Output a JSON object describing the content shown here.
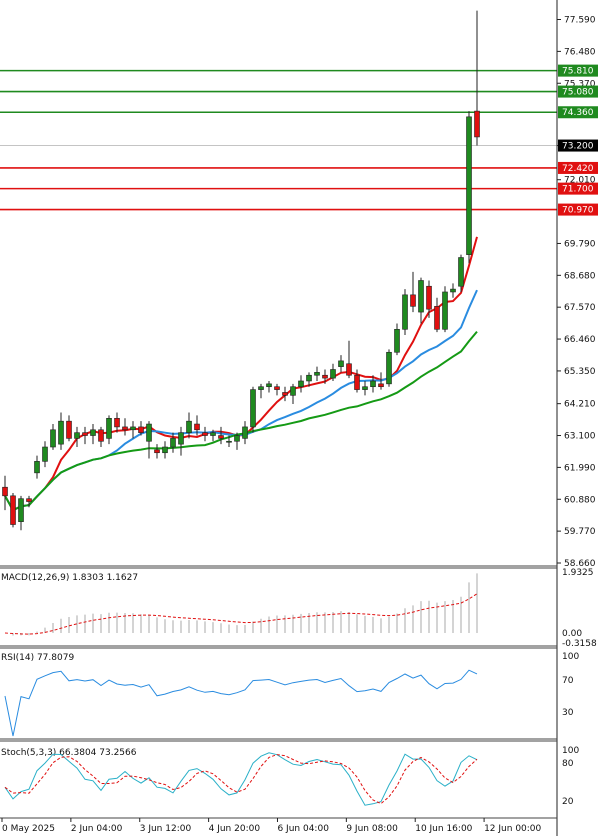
{
  "chart_data": {
    "type": "candlestick",
    "price_axis": {
      "ticks": [
        "77.590",
        "76.480",
        "75.370",
        "73.200",
        "72.010",
        "69.790",
        "68.680",
        "67.570",
        "66.460",
        "65.350",
        "64.210",
        "63.100",
        "61.990",
        "60.880",
        "59.770",
        "58.660"
      ],
      "range": [
        58.66,
        78.2
      ]
    },
    "current_price": {
      "value": 73.2,
      "label": "73.200",
      "color": "#000000"
    },
    "levels": [
      {
        "value": 75.81,
        "label": "75.810",
        "color": "#1f8a1f"
      },
      {
        "value": 75.08,
        "label": "75.080",
        "color": "#1f8a1f"
      },
      {
        "value": 74.36,
        "label": "74.360",
        "color": "#1f8a1f"
      },
      {
        "value": 72.42,
        "label": "72.420",
        "color": "#e01010"
      },
      {
        "value": 71.7,
        "label": "71.700",
        "color": "#e01010"
      },
      {
        "value": 70.97,
        "label": "70.970",
        "color": "#e01010"
      }
    ],
    "candles": [
      [
        61.3,
        61.7,
        60.5,
        61.0
      ],
      [
        61.0,
        61.1,
        59.9,
        60.0
      ],
      [
        60.1,
        61.0,
        59.8,
        60.9
      ],
      [
        60.9,
        61.0,
        60.6,
        60.8
      ],
      [
        61.8,
        62.4,
        61.6,
        62.2
      ],
      [
        62.2,
        62.9,
        62.0,
        62.7
      ],
      [
        62.7,
        63.5,
        62.6,
        63.3
      ],
      [
        62.8,
        63.9,
        62.6,
        63.6
      ],
      [
        63.6,
        63.8,
        62.9,
        63.0
      ],
      [
        63.0,
        63.4,
        62.7,
        63.2
      ],
      [
        63.2,
        63.4,
        62.8,
        63.1
      ],
      [
        63.1,
        63.5,
        62.8,
        63.3
      ],
      [
        63.3,
        63.4,
        62.7,
        62.9
      ],
      [
        63.0,
        63.8,
        62.8,
        63.7
      ],
      [
        63.7,
        63.9,
        63.2,
        63.4
      ],
      [
        63.4,
        63.7,
        63.1,
        63.3
      ],
      [
        63.3,
        63.6,
        63.0,
        63.4
      ],
      [
        63.4,
        63.6,
        63.1,
        63.2
      ],
      [
        62.9,
        63.6,
        62.3,
        63.5
      ],
      [
        62.6,
        62.8,
        62.3,
        62.5
      ],
      [
        62.5,
        62.9,
        62.3,
        62.7
      ],
      [
        62.7,
        63.2,
        62.5,
        63.0
      ],
      [
        62.8,
        63.4,
        62.4,
        63.2
      ],
      [
        63.2,
        63.9,
        63.0,
        63.6
      ],
      [
        63.5,
        63.8,
        63.1,
        63.3
      ],
      [
        63.2,
        63.4,
        62.9,
        63.1
      ],
      [
        63.1,
        63.3,
        62.9,
        63.2
      ],
      [
        63.1,
        63.4,
        62.8,
        63.0
      ],
      [
        62.9,
        63.1,
        62.7,
        62.9
      ],
      [
        62.9,
        63.2,
        62.6,
        63.1
      ],
      [
        63.0,
        63.6,
        62.8,
        63.4
      ],
      [
        63.4,
        64.8,
        63.2,
        64.7
      ],
      [
        64.7,
        64.9,
        64.4,
        64.8
      ],
      [
        64.8,
        65.0,
        64.6,
        64.9
      ],
      [
        64.8,
        64.9,
        64.5,
        64.7
      ],
      [
        64.6,
        64.8,
        64.3,
        64.5
      ],
      [
        64.5,
        64.9,
        64.2,
        64.8
      ],
      [
        64.8,
        65.2,
        64.6,
        65.0
      ],
      [
        65.0,
        65.3,
        64.8,
        65.2
      ],
      [
        65.2,
        65.5,
        65.0,
        65.3
      ],
      [
        65.2,
        65.4,
        64.9,
        65.1
      ],
      [
        65.1,
        65.6,
        65.0,
        65.4
      ],
      [
        65.5,
        65.9,
        65.3,
        65.7
      ],
      [
        65.6,
        66.4,
        65.1,
        65.2
      ],
      [
        65.2,
        65.4,
        64.6,
        64.7
      ],
      [
        64.7,
        65.0,
        64.5,
        64.8
      ],
      [
        64.8,
        65.2,
        64.6,
        65.0
      ],
      [
        64.9,
        65.3,
        64.7,
        64.8
      ],
      [
        64.9,
        66.1,
        64.8,
        66.0
      ],
      [
        66.0,
        67.0,
        65.9,
        66.8
      ],
      [
        66.8,
        68.2,
        66.6,
        68.0
      ],
      [
        68.0,
        68.8,
        67.4,
        67.6
      ],
      [
        67.4,
        68.6,
        67.0,
        68.5
      ],
      [
        68.3,
        68.5,
        67.2,
        67.5
      ],
      [
        67.6,
        67.9,
        66.7,
        66.8
      ],
      [
        66.8,
        68.3,
        66.7,
        68.1
      ],
      [
        68.1,
        68.4,
        67.9,
        68.2
      ],
      [
        68.3,
        69.4,
        68.1,
        69.3
      ],
      [
        69.4,
        74.4,
        69.1,
        74.2
      ],
      [
        74.4,
        77.9,
        73.2,
        73.5
      ]
    ],
    "indicators": [
      {
        "name": "MA-fast",
        "color": "#e01010"
      },
      {
        "name": "MA-mid",
        "color": "#2a8ce0"
      },
      {
        "name": "MA-slow",
        "color": "#159a15"
      }
    ],
    "x_ticks": [
      "0 May 2025",
      "2 Jun 04:00",
      "3 Jun 12:00",
      "4 Jun 20:00",
      "6 Jun 04:00",
      "9 Jun 08:00",
      "10 Jun 16:00",
      "12 Jun 00:00"
    ],
    "macd": {
      "label": "MACD(12,26,9) 1.8303 1.1627",
      "ticks": [
        "1.9325",
        "0.00",
        "-0.3158"
      ],
      "range": [
        -0.3158,
        1.9325
      ]
    },
    "rsi": {
      "label": "RSI(14) 77.8079",
      "ticks": [
        "100",
        "70",
        "30",
        "0"
      ],
      "range": [
        0,
        100
      ]
    },
    "stoch": {
      "label": "Stoch(5,3,3) 66.3804 73.2566",
      "ticks": [
        "100",
        "80",
        "20",
        "0"
      ],
      "range": [
        0,
        100
      ]
    }
  }
}
